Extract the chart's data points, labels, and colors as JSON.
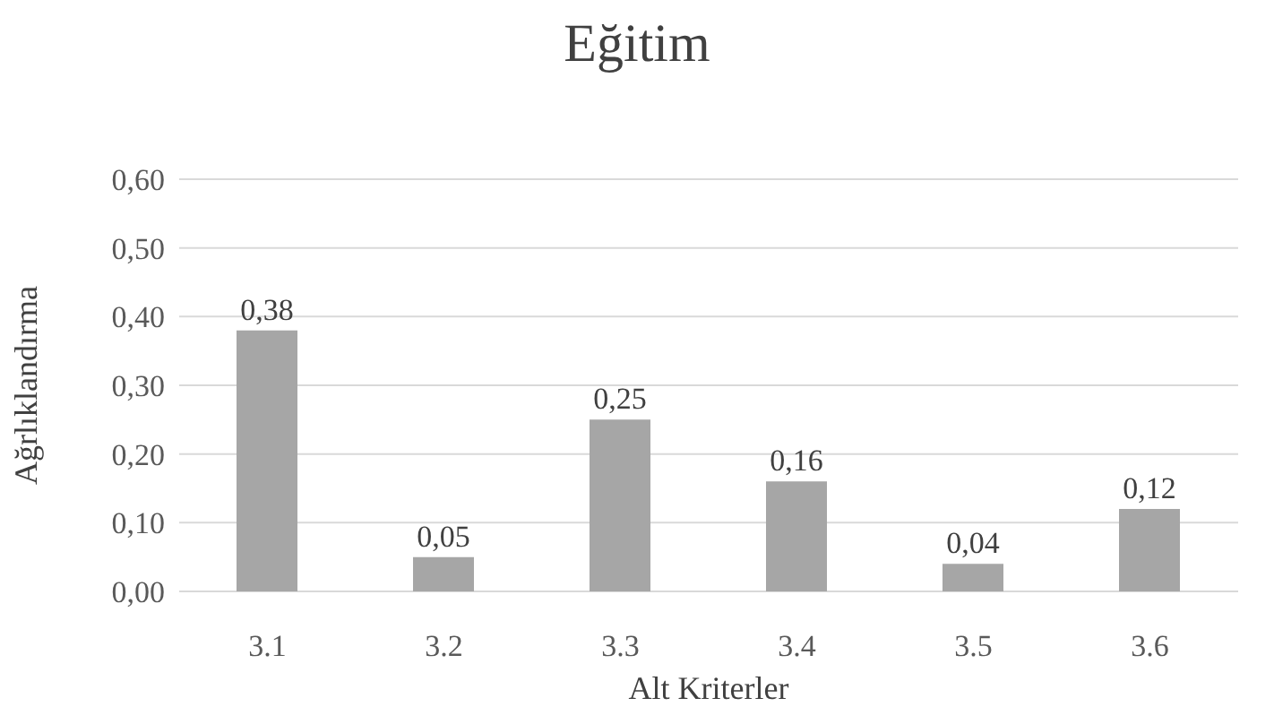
{
  "chart_data": {
    "type": "bar",
    "title": "Eğitim",
    "xlabel": "Alt Kriterler",
    "ylabel": "Ağrlıklandırma",
    "categories": [
      "3.1",
      "3.2",
      "3.3",
      "3.4",
      "3.5",
      "3.6"
    ],
    "values": [
      0.38,
      0.05,
      0.25,
      0.16,
      0.04,
      0.12
    ],
    "value_labels": [
      "0,38",
      "0,05",
      "0,25",
      "0,16",
      "0,04",
      "0,12"
    ],
    "color": "#a6a6a6",
    "ylim": [
      0,
      0.6
    ],
    "yticks": [
      {
        "value": 0,
        "label": "0,00"
      },
      {
        "value": 0.1,
        "label": "0,10"
      },
      {
        "value": 0.2,
        "label": "0,20"
      },
      {
        "value": 0.3,
        "label": "0,30"
      },
      {
        "value": 0.4,
        "label": "0,40"
      },
      {
        "value": 0.5,
        "label": "0,50"
      },
      {
        "value": 0.6,
        "label": "0,60"
      }
    ],
    "grid": "y"
  }
}
